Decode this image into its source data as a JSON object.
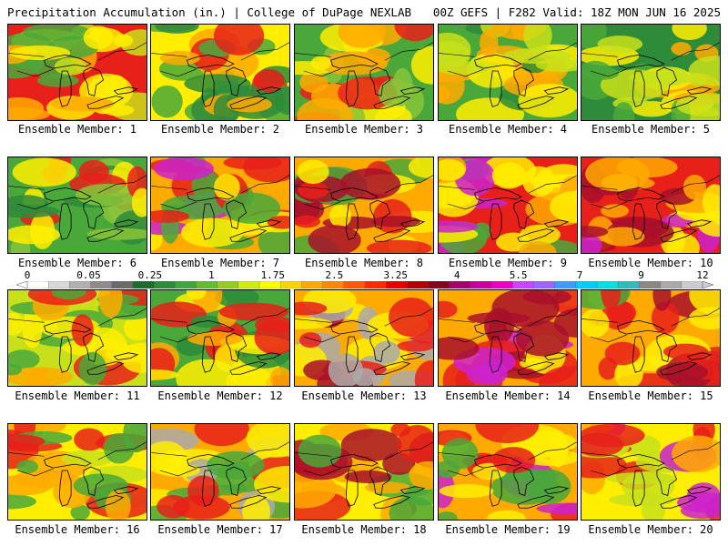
{
  "header": {
    "left": "Precipitation Accumulation (in.) | College of DuPage NEXLAB",
    "right": "00Z GEFS | F282 Valid: 18Z MON JUN 16 2025"
  },
  "members": [
    {
      "label": "Ensemble Member: 1"
    },
    {
      "label": "Ensemble Member: 2"
    },
    {
      "label": "Ensemble Member: 3"
    },
    {
      "label": "Ensemble Member: 4"
    },
    {
      "label": "Ensemble Member: 5"
    },
    {
      "label": "Ensemble Member: 6"
    },
    {
      "label": "Ensemble Member: 7"
    },
    {
      "label": "Ensemble Member: 8"
    },
    {
      "label": "Ensemble Member: 9"
    },
    {
      "label": "Ensemble Member: 10"
    },
    {
      "label": "Ensemble Member: 11"
    },
    {
      "label": "Ensemble Member: 12"
    },
    {
      "label": "Ensemble Member: 13"
    },
    {
      "label": "Ensemble Member: 14"
    },
    {
      "label": "Ensemble Member: 15"
    },
    {
      "label": "Ensemble Member: 16"
    },
    {
      "label": "Ensemble Member: 17"
    },
    {
      "label": "Ensemble Member: 18"
    },
    {
      "label": "Ensemble Member: 19"
    },
    {
      "label": "Ensemble Member: 20"
    }
  ],
  "legend": {
    "ticks": [
      "0",
      "0.05",
      "0.25",
      "1",
      "1.75",
      "2.5",
      "3.25",
      "4",
      "5.5",
      "7",
      "9",
      "12"
    ],
    "colors": [
      "#ffffff",
      "#d9d9d9",
      "#b0b0b0",
      "#8c8c8c",
      "#6b6b6b",
      "#1f6b2e",
      "#2e8b3a",
      "#3fa63f",
      "#66bb33",
      "#99cc22",
      "#ccee11",
      "#ffff00",
      "#ffd400",
      "#ffaa00",
      "#ff8800",
      "#ff5a00",
      "#ff2a00",
      "#e60000",
      "#b30000",
      "#880022",
      "#aa0066",
      "#cc0099",
      "#ee00cc",
      "#cc44ff",
      "#9966ff",
      "#4499ff",
      "#00ccff",
      "#00e0e0",
      "#33bbbb",
      "#888888",
      "#aaaaaa",
      "#cccccc"
    ]
  },
  "palette": {
    "dark_green": "#2e8b3a",
    "green": "#4aa83a",
    "light_green": "#88c43a",
    "yellow_green": "#c8e01a",
    "yellow": "#ffee00",
    "orange": "#ffaa00",
    "red_orange": "#ff5a00",
    "red": "#e8201a",
    "dark_red": "#a8102a",
    "magenta": "#cc22cc",
    "gray": "#aaaaaa"
  }
}
